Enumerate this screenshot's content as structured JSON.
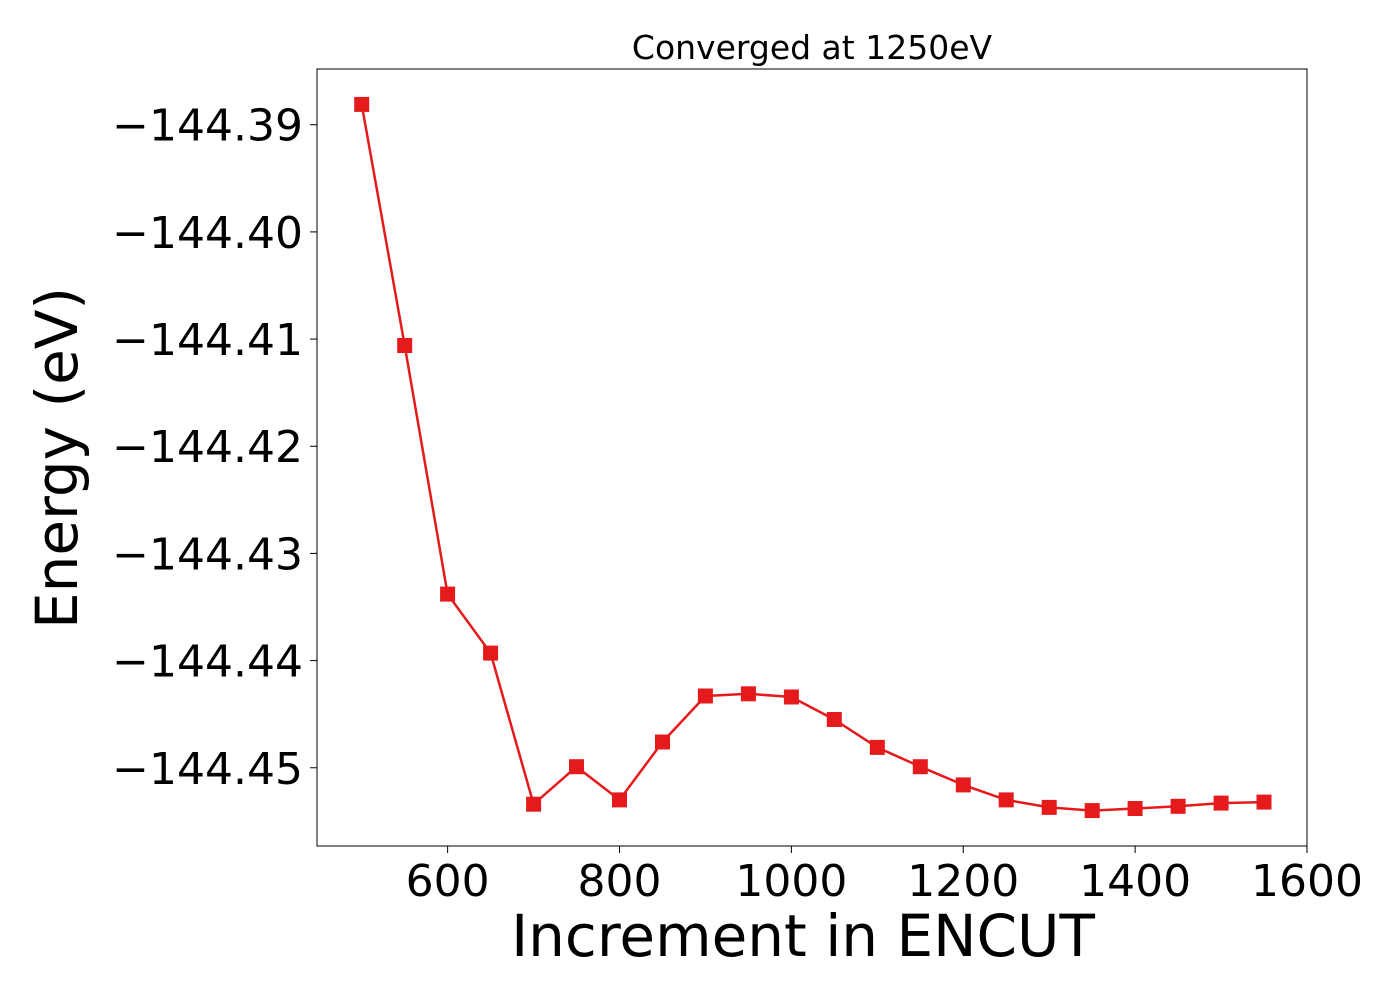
{
  "chart_data": {
    "type": "line",
    "title": "Converged at 1250eV",
    "xlabel": "Increment in ENCUT",
    "ylabel": "Energy (eV)",
    "xlim": [
      448,
      1600
    ],
    "ylim": [
      -144.4573,
      -144.3848
    ],
    "x_ticks": [
      600,
      800,
      1000,
      1200,
      1400,
      1600
    ],
    "y_ticks": [
      -144.39,
      -144.4,
      -144.41,
      -144.42,
      -144.43,
      -144.44,
      -144.45
    ],
    "x_tick_labels": [
      "600",
      "800",
      "1000",
      "1200",
      "1400",
      "1600"
    ],
    "y_tick_labels": [
      "−144.39",
      "−144.40",
      "−144.41",
      "−144.42",
      "−144.43",
      "−144.44",
      "−144.45"
    ],
    "grid": false,
    "legend": "none",
    "marker": "square",
    "color": "#e41a1c",
    "series": [
      {
        "x": [
          500,
          550,
          600,
          650,
          700,
          750,
          800,
          850,
          900,
          950,
          1000,
          1050,
          1100,
          1150,
          1200,
          1250,
          1300,
          1350,
          1400,
          1450,
          1500,
          1550
        ],
        "y": [
          -144.3881,
          -144.4106,
          -144.4338,
          -144.4393,
          -144.4534,
          -144.4499,
          -144.453,
          -144.4476,
          -144.4433,
          -144.4431,
          -144.4434,
          -144.4455,
          -144.4481,
          -144.4499,
          -144.4516,
          -144.453,
          -144.4537,
          -144.454,
          -144.4538,
          -144.4536,
          -144.4533,
          -144.4532
        ]
      }
    ]
  }
}
